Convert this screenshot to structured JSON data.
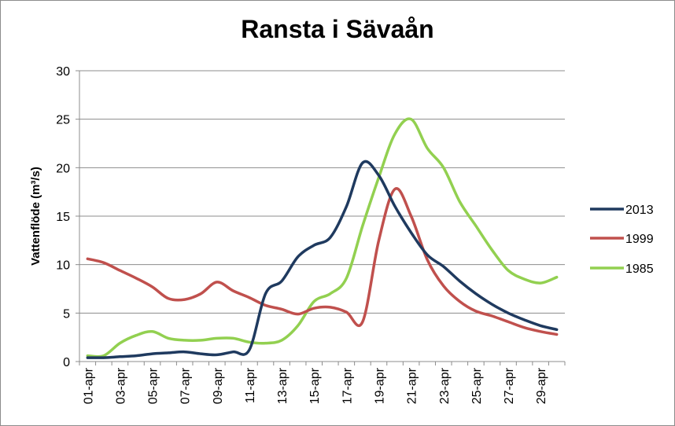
{
  "chart_data": {
    "type": "line",
    "title": "Ransta i Sävaån",
    "ylabel": "Vattenflöde (m³/s)",
    "xlabel": "",
    "ylim": [
      0,
      30
    ],
    "yticks": [
      0,
      5,
      10,
      15,
      20,
      25,
      30
    ],
    "grid": "horizontal",
    "legend_position": "right",
    "x": [
      "01-apr",
      "02-apr",
      "03-apr",
      "04-apr",
      "05-apr",
      "06-apr",
      "07-apr",
      "08-apr",
      "09-apr",
      "10-apr",
      "11-apr",
      "12-apr",
      "13-apr",
      "14-apr",
      "15-apr",
      "16-apr",
      "17-apr",
      "18-apr",
      "19-apr",
      "20-apr",
      "21-apr",
      "22-apr",
      "23-apr",
      "24-apr",
      "25-apr",
      "26-apr",
      "27-apr",
      "28-apr",
      "29-apr",
      "30-apr"
    ],
    "xtick_labels": [
      "01-apr",
      "03-apr",
      "05-apr",
      "07-apr",
      "09-apr",
      "11-apr",
      "13-apr",
      "15-apr",
      "17-apr",
      "19-apr",
      "21-apr",
      "23-apr",
      "25-apr",
      "27-apr",
      "29-apr"
    ],
    "series": [
      {
        "name": "2013",
        "color": "#1f3a5f",
        "values": [
          0.4,
          0.4,
          0.5,
          0.6,
          0.8,
          0.9,
          1.0,
          0.8,
          0.7,
          1.0,
          1.2,
          7.0,
          8.3,
          10.8,
          12.0,
          12.8,
          16.0,
          20.5,
          19.2,
          16.0,
          13.3,
          11.0,
          9.8,
          8.3,
          7.0,
          5.9,
          5.0,
          4.3,
          3.7,
          3.3
        ]
      },
      {
        "name": "1999",
        "color": "#c0504d",
        "values": [
          10.6,
          10.2,
          9.4,
          8.6,
          7.7,
          6.5,
          6.4,
          7.0,
          8.2,
          7.3,
          6.6,
          5.8,
          5.4,
          4.9,
          5.5,
          5.6,
          5.1,
          4.1,
          12.5,
          17.8,
          15.0,
          10.5,
          7.8,
          6.2,
          5.2,
          4.7,
          4.1,
          3.5,
          3.1,
          2.8
        ]
      },
      {
        "name": "1985",
        "color": "#92d050",
        "values": [
          0.6,
          0.6,
          1.9,
          2.7,
          3.1,
          2.4,
          2.2,
          2.2,
          2.4,
          2.4,
          2.0,
          1.9,
          2.2,
          3.7,
          6.2,
          7.0,
          8.6,
          14.0,
          19.0,
          23.5,
          25.0,
          22.0,
          20.0,
          16.5,
          14.0,
          11.5,
          9.4,
          8.5,
          8.1,
          8.7
        ]
      }
    ]
  }
}
